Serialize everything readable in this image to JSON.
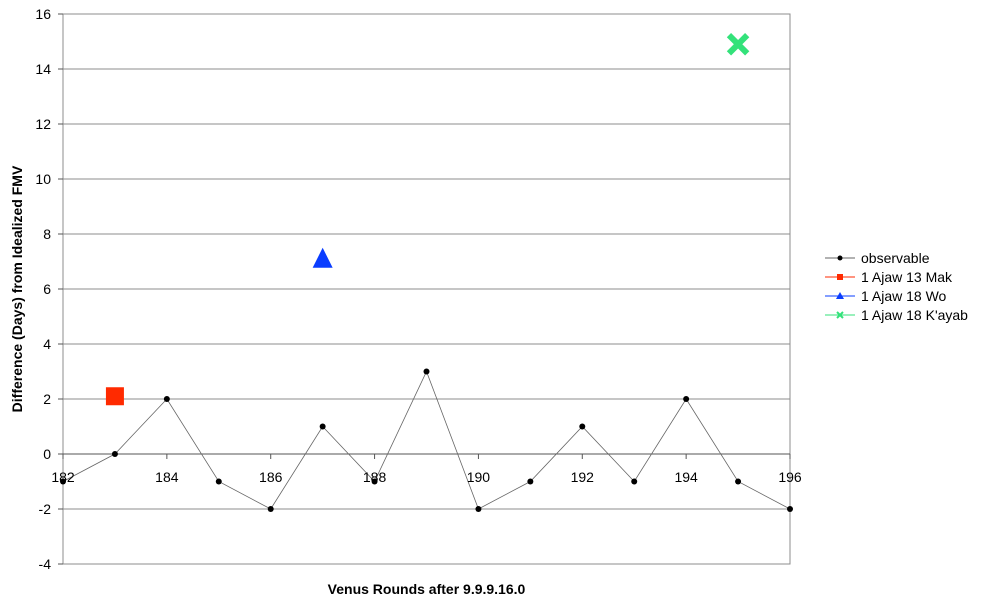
{
  "chart_data": {
    "type": "scatter",
    "xlabel": "Venus Rounds after 9.9.9.16.0",
    "ylabel": "Difference (Days) from Idealized FMV",
    "xlim": [
      182,
      196
    ],
    "ylim": [
      -4,
      16
    ],
    "xticks": [
      182,
      184,
      186,
      188,
      190,
      192,
      194,
      196
    ],
    "yticks": [
      -4,
      -2,
      0,
      2,
      4,
      6,
      8,
      10,
      12,
      14,
      16
    ],
    "grid": "horizontal",
    "legend_position": "right",
    "series": [
      {
        "name": "observable",
        "kind": "line",
        "color": "#000000",
        "marker": "dot",
        "x": [
          182,
          183,
          184,
          185,
          186,
          187,
          188,
          189,
          190,
          191,
          192,
          193,
          194,
          195,
          196
        ],
        "y": [
          -1,
          0,
          2,
          -1,
          -2,
          1,
          -1,
          3,
          -2,
          -1,
          1,
          -1,
          2,
          -1,
          -2
        ]
      },
      {
        "name": "1 Ajaw 13 Mak",
        "kind": "marker",
        "color": "#ff2a00",
        "marker": "square",
        "x": [
          183
        ],
        "y": [
          2.1
        ]
      },
      {
        "name": "1 Ajaw 18 Wo",
        "kind": "marker",
        "color": "#0a3dff",
        "marker": "triangle",
        "x": [
          187
        ],
        "y": [
          7.1
        ]
      },
      {
        "name": "1 Ajaw 18 K'ayab",
        "kind": "marker",
        "color": "#33e27a",
        "marker": "x",
        "x": [
          195
        ],
        "y": [
          14.9
        ]
      }
    ]
  }
}
